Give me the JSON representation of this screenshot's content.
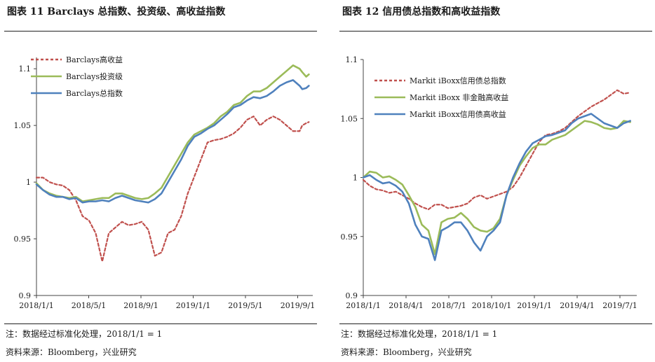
{
  "panels": [
    {
      "title": "图表 11  Barclays 总指数、投资级、高收益指数",
      "note": "注：数据经过标准化处理，2018/1/1 = 1",
      "source": "资料来源：Bloomberg，兴业研究"
    },
    {
      "title": "图表 12  信用债总指数和高收益指数",
      "note": "注：数据经过标准化处理，2018/1/1 = 1",
      "source": "资料来源：Bloomberg，兴业研究"
    }
  ],
  "chart_data": [
    {
      "type": "line",
      "title": "图表 11  Barclays 总指数、投资级、高收益指数",
      "xlabel": "",
      "ylabel": "",
      "x_ticks": [
        "2018/1/1",
        "2018/5/1",
        "2018/9/1",
        "2019/1/1",
        "2019/5/1",
        "2019/9/1"
      ],
      "y_ticks": [
        "0.9",
        "0.95",
        "1",
        "1.05",
        "1.1"
      ],
      "ylim": [
        0.9,
        1.11
      ],
      "xlim_months": [
        0,
        21
      ],
      "grid": false,
      "legend_position": "top-left",
      "x_months": [
        0,
        0.5,
        1,
        1.5,
        2,
        2.5,
        3,
        3.5,
        4,
        4.5,
        5,
        5.5,
        6,
        6.5,
        7,
        7.5,
        8,
        8.5,
        9,
        9.5,
        10,
        10.5,
        11,
        11.5,
        12,
        12.5,
        13,
        13.5,
        14,
        14.5,
        15,
        15.5,
        16,
        16.5,
        17,
        17.5,
        18,
        18.5,
        19,
        19.5,
        20,
        20.2,
        20.5,
        20.7
      ],
      "series": [
        {
          "name": "Barclays高收益",
          "color": "#c0504d",
          "dash": true,
          "values": [
            1.004,
            1.004,
            1.0,
            0.998,
            0.997,
            0.993,
            0.984,
            0.97,
            0.966,
            0.955,
            0.93,
            0.955,
            0.96,
            0.965,
            0.962,
            0.963,
            0.965,
            0.958,
            0.935,
            0.938,
            0.955,
            0.958,
            0.97,
            0.99,
            1.005,
            1.02,
            1.035,
            1.037,
            1.038,
            1.04,
            1.043,
            1.048,
            1.055,
            1.058,
            1.05,
            1.055,
            1.058,
            1.055,
            1.05,
            1.045,
            1.045,
            1.05,
            1.052,
            1.053
          ]
        },
        {
          "name": "Barclays投资级",
          "color": "#9bbb59",
          "dash": false,
          "values": [
            0.999,
            0.993,
            0.99,
            0.988,
            0.987,
            0.986,
            0.987,
            0.983,
            0.984,
            0.985,
            0.986,
            0.986,
            0.99,
            0.99,
            0.988,
            0.986,
            0.985,
            0.986,
            0.99,
            0.995,
            1.005,
            1.015,
            1.025,
            1.035,
            1.042,
            1.045,
            1.048,
            1.052,
            1.058,
            1.062,
            1.068,
            1.07,
            1.076,
            1.08,
            1.08,
            1.083,
            1.088,
            1.093,
            1.098,
            1.103,
            1.1,
            1.097,
            1.093,
            1.095
          ]
        },
        {
          "name": "Barclays总指数",
          "color": "#4f81bd",
          "dash": false,
          "values": [
            0.998,
            0.993,
            0.989,
            0.987,
            0.987,
            0.985,
            0.986,
            0.982,
            0.983,
            0.983,
            0.984,
            0.983,
            0.986,
            0.988,
            0.986,
            0.984,
            0.983,
            0.982,
            0.985,
            0.99,
            1.0,
            1.01,
            1.02,
            1.032,
            1.04,
            1.043,
            1.047,
            1.05,
            1.055,
            1.06,
            1.066,
            1.068,
            1.072,
            1.075,
            1.074,
            1.076,
            1.08,
            1.085,
            1.088,
            1.09,
            1.085,
            1.082,
            1.083,
            1.085
          ]
        }
      ]
    },
    {
      "type": "line",
      "title": "图表 12  信用债总指数和高收益指数",
      "xlabel": "",
      "ylabel": "",
      "x_ticks": [
        "2018/1/1",
        "2018/4/1",
        "2018/7/1",
        "2018/10/1",
        "2019/1/1",
        "2019/4/1",
        "2019/7/1"
      ],
      "y_ticks": [
        "0.9",
        "0.95",
        "1",
        "1.05",
        "1.1"
      ],
      "ylim": [
        0.9,
        1.1
      ],
      "xlim_months": [
        0,
        21
      ],
      "grid": false,
      "legend_position": "top-left",
      "x_months": [
        0,
        0.5,
        1,
        1.5,
        2,
        2.5,
        3,
        3.5,
        4,
        4.5,
        5,
        5.5,
        6,
        6.5,
        7,
        7.5,
        8,
        8.5,
        9,
        9.5,
        10,
        10.5,
        11,
        11.5,
        12,
        12.5,
        13,
        13.5,
        14,
        14.5,
        15,
        15.5,
        16,
        16.5,
        17,
        17.5,
        18,
        18.5,
        19,
        19.5,
        20,
        20.5
      ],
      "series": [
        {
          "name": "Markit iBoxx信用债总指数",
          "color": "#c0504d",
          "dash": true,
          "values": [
            0.998,
            0.993,
            0.99,
            0.989,
            0.987,
            0.988,
            0.985,
            0.982,
            0.978,
            0.975,
            0.973,
            0.977,
            0.977,
            0.974,
            0.975,
            0.976,
            0.978,
            0.983,
            0.985,
            0.982,
            0.984,
            0.986,
            0.988,
            0.992,
            1.0,
            1.01,
            1.02,
            1.03,
            1.036,
            1.037,
            1.039,
            1.042,
            1.047,
            1.052,
            1.056,
            1.06,
            1.063,
            1.066,
            1.07,
            1.074,
            1.071,
            1.072
          ]
        },
        {
          "name": "Markit iBoxx 非金融高收益",
          "color": "#9bbb59",
          "dash": false,
          "values": [
            1.0,
            1.005,
            1.004,
            1.0,
            1.001,
            0.998,
            0.994,
            0.985,
            0.975,
            0.96,
            0.955,
            0.935,
            0.962,
            0.965,
            0.966,
            0.97,
            0.965,
            0.958,
            0.955,
            0.954,
            0.957,
            0.965,
            0.985,
            0.998,
            1.01,
            1.018,
            1.025,
            1.028,
            1.028,
            1.032,
            1.034,
            1.036,
            1.04,
            1.044,
            1.048,
            1.047,
            1.045,
            1.042,
            1.041,
            1.042,
            1.048,
            1.047
          ]
        },
        {
          "name": "Markit iBoxx信用债高收益",
          "color": "#4f81bd",
          "dash": false,
          "values": [
            1.0,
            1.002,
            0.998,
            0.995,
            0.996,
            0.993,
            0.988,
            0.978,
            0.96,
            0.95,
            0.948,
            0.93,
            0.955,
            0.958,
            0.962,
            0.962,
            0.955,
            0.945,
            0.938,
            0.95,
            0.955,
            0.962,
            0.985,
            1.0,
            1.012,
            1.022,
            1.029,
            1.032,
            1.035,
            1.036,
            1.038,
            1.04,
            1.046,
            1.05,
            1.052,
            1.054,
            1.05,
            1.046,
            1.044,
            1.042,
            1.046,
            1.048
          ]
        }
      ]
    }
  ]
}
